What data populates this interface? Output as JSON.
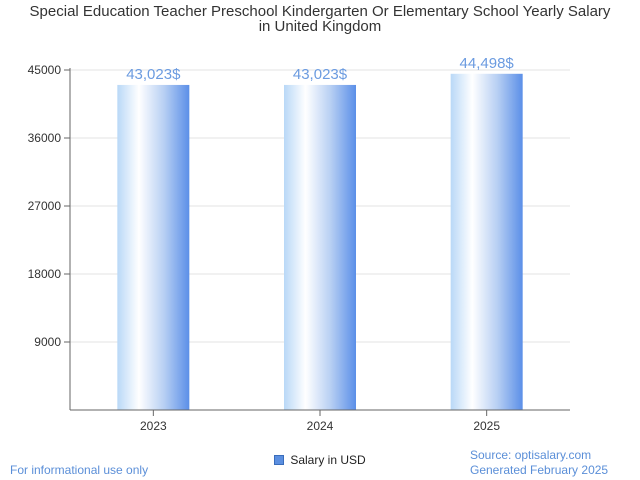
{
  "chart_data": {
    "type": "bar",
    "title_lines": [
      "Special Education Teacher Preschool Kindergarten Or Elementary School Yearly Salary",
      "in United Kingdom"
    ],
    "categories": [
      "2023",
      "2024",
      "2025"
    ],
    "series": [
      {
        "name": "Salary in USD",
        "values": [
          43023,
          43023,
          44498
        ],
        "labels": [
          "43,023$",
          "43,023$",
          "44,498$"
        ]
      }
    ],
    "y_ticks": [
      9000,
      18000,
      27000,
      36000,
      45000
    ],
    "ylim": [
      0,
      45000
    ],
    "grid": true,
    "legend_position": "bottom",
    "colors": {
      "bar_light": "#ffffff",
      "bar_mid": "#b9d8f7",
      "bar_dark": "#5b8fe8",
      "label": "#6b9be0"
    }
  },
  "footer": {
    "disclaimer": "For informational use only",
    "source": "Source: optisalary.com",
    "generated": "Generated February 2025"
  }
}
